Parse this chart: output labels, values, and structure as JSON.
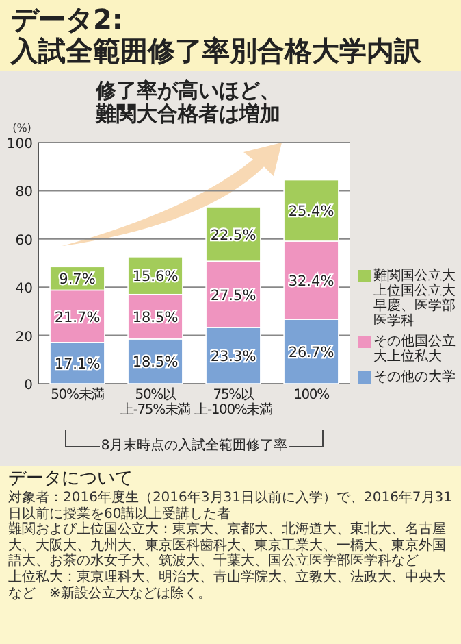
{
  "chart_data": {
    "type": "bar",
    "title": "データ2:",
    "subtitle": "入試全範囲修了率別合格大学内訳",
    "ylabel": "(%)",
    "xlabel": "8月末時点の入試全範囲修了率",
    "annotations": [
      "修了率が高いほど、難関大合格者は増加",
      "データについて",
      "対象者：2016年度生（2016年3月31日以前に入学）で、2016年7月31日以前に授業を60講以上受講した者",
      "難関および上位国公立大：東京大、京都大、北海道大、東北大、名古屋大、大阪大、九州大、東京医科歯科大、東京工業大、一橋大、東京外国語大、お茶の水女子大、筑波大、千葉大、国公立医学部医学科など",
      "上位私大：東京理科大、明治大、青山学院大、立教大、法政大、中央大など　※新設公立大などは除く。"
    ],
    "categories": [
      "50%未満",
      "50%以上-75%未満",
      "75%以上-100%未満",
      "100%"
    ],
    "stacked": true,
    "ylim": [
      0,
      100
    ],
    "yticks": [
      0,
      20,
      40,
      60,
      80,
      100
    ],
    "grid": "y",
    "legend": "right",
    "series": [
      {
        "name": "その他の大学",
        "color": "#7ba3d6",
        "values": [
          17.1,
          18.5,
          23.3,
          26.7
        ],
        "value_labels": [
          "17.1%",
          "18.5%",
          "23.3%",
          "26.7%"
        ]
      },
      {
        "name": "その他国公立大上位私大",
        "color": "#ef94bf",
        "values": [
          21.7,
          18.5,
          27.5,
          32.4
        ],
        "value_labels": [
          "21.7%",
          "18.5%",
          "27.5%",
          "32.4%"
        ]
      },
      {
        "name": "難関国公立大上位国公立大早慶、医学部医学科",
        "color": "#a3cc5a",
        "values": [
          9.7,
          15.6,
          22.5,
          25.4
        ],
        "value_labels": [
          "9.7%",
          "15.6%",
          "22.5%",
          "25.4%"
        ]
      }
    ]
  }
}
